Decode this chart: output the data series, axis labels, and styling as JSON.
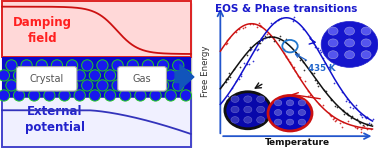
{
  "left_panel": {
    "damping_field_text": "Damping\nfield",
    "damping_text_color": "#ff2020",
    "crystal_text": "Crystal",
    "gas_text": "Gas",
    "external_potential_text": "External\npotential",
    "external_potential_color": "#2222cc",
    "top_bg_color": "#ffd8d8",
    "top_border_color": "#dd2222",
    "mid_bg_color": "#0a0acc",
    "bot_bg_color": "#f0f0ff",
    "bot_border_color": "#4444cc",
    "damping_curve_color": "#cc1111",
    "ext_curve_color": "#3333bb",
    "hex_edge_color": "#22cc22",
    "hex_face_color": "#1818ee",
    "arrow_color": "#1155bb"
  },
  "right_panel": {
    "title": "EOS & Phase transitions",
    "title_color": "#1a1acc",
    "xlabel": "Temperature",
    "ylabel": "Free Energy",
    "curve_red_color": "#cc1111",
    "curve_black_color": "#111111",
    "curve_blue_color": "#1111cc",
    "annotation_text": "435 K",
    "annotation_color": "#2266cc",
    "axis_color": "#2255cc",
    "circle_ann_color": "#2277cc"
  },
  "figsize": [
    3.78,
    1.48
  ],
  "dpi": 100
}
